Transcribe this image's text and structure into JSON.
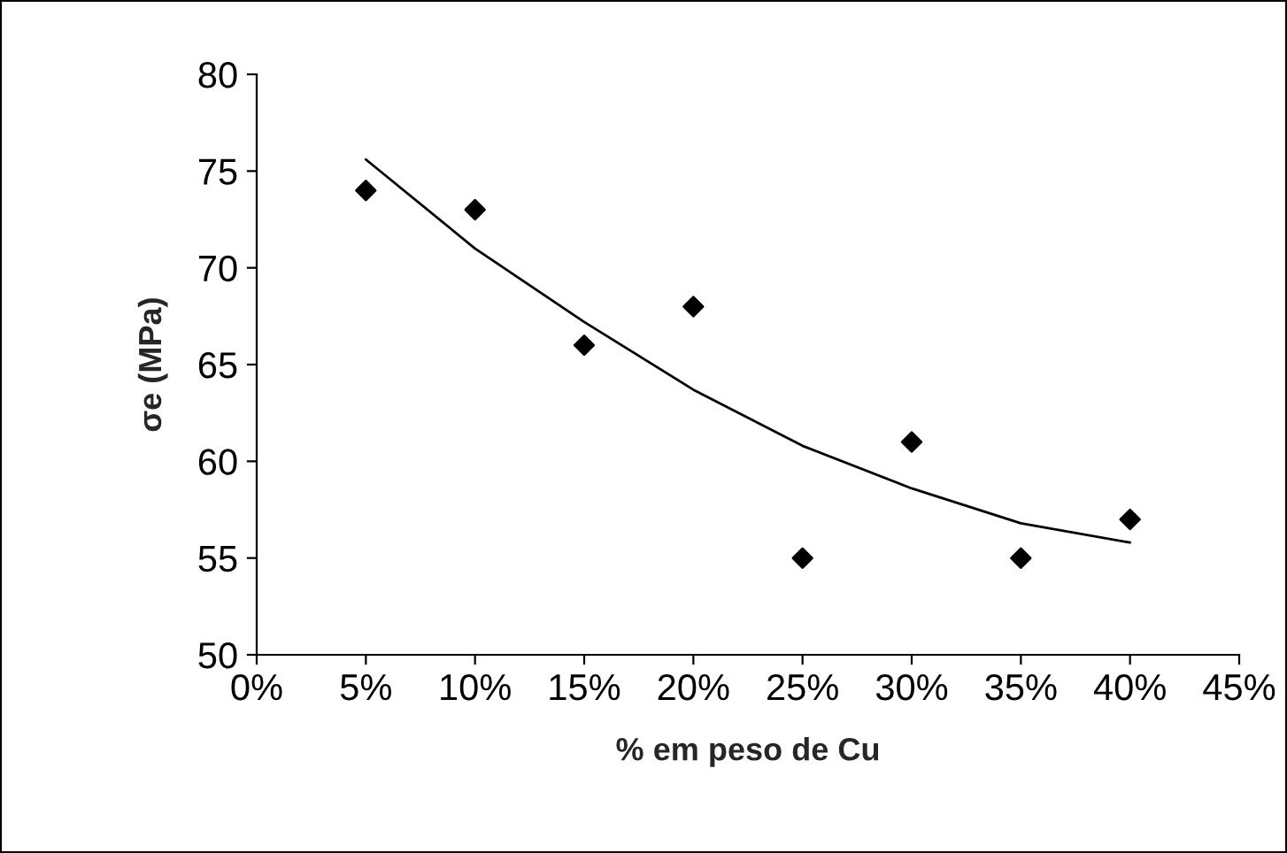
{
  "chart_data": {
    "type": "scatter",
    "xlabel": "% em peso de Cu",
    "ylabel": "σe (MPa)",
    "series": [
      {
        "color": "#000000",
        "marker": "diamond",
        "x": [
          5,
          10,
          15,
          20,
          25,
          30,
          35,
          40
        ],
        "values": [
          74,
          73,
          66,
          68,
          55,
          61,
          55,
          57
        ]
      },
      {
        "type": "line",
        "color": "#000000",
        "line_style": "solid",
        "x": [
          5,
          10,
          15,
          20,
          25,
          30,
          35,
          40
        ],
        "values": [
          75.6,
          71.0,
          67.2,
          63.7,
          60.8,
          58.6,
          56.8,
          55.8
        ]
      }
    ],
    "xlim": [
      0,
      45
    ],
    "xticks": [
      {
        "value": 0,
        "label": "0%"
      },
      {
        "value": 5,
        "label": "5%"
      },
      {
        "value": 10,
        "label": "10%"
      },
      {
        "value": 15,
        "label": "15%"
      },
      {
        "value": 20,
        "label": "20%"
      },
      {
        "value": 25,
        "label": "25%"
      },
      {
        "value": 30,
        "label": "30%"
      },
      {
        "value": 35,
        "label": "35%"
      },
      {
        "value": 40,
        "label": "40%"
      },
      {
        "value": 45,
        "label": "45%"
      }
    ],
    "ylim": [
      50,
      80
    ],
    "yticks": [
      50,
      55,
      60,
      65,
      70,
      75,
      80
    ],
    "grid": false,
    "legend": false
  }
}
